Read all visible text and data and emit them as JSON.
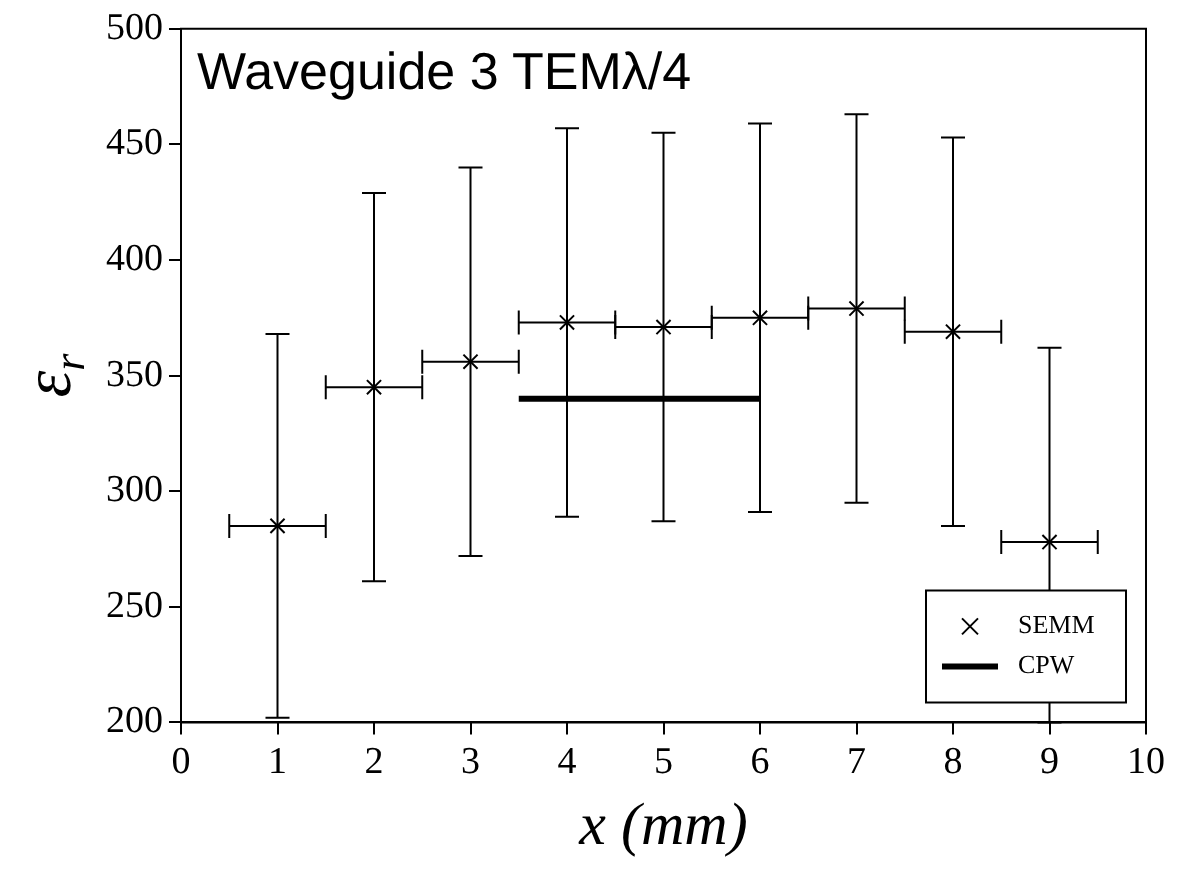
{
  "chart_data": {
    "type": "scatter",
    "title": "Waveguide 3 TEMλ/4",
    "xlabel": "x (mm)",
    "ylabel": "ε$_{r}$",
    "xlim": [
      0,
      10
    ],
    "xticks": [
      0,
      1,
      2,
      3,
      4,
      5,
      6,
      7,
      8,
      9,
      10
    ],
    "ylim": [
      200,
      500
    ],
    "yticks": [
      200,
      250,
      300,
      350,
      400,
      450,
      500
    ],
    "grid": false,
    "legend": "bottom right",
    "marker": "cross",
    "series": [
      {
        "name": "SEMM",
        "type": "scatter",
        "color": "#000000",
        "x": [
          1,
          2,
          3,
          4,
          5,
          6,
          7,
          8,
          9
        ],
        "values": [
          285,
          345,
          356,
          373,
          371,
          375,
          379,
          369,
          278
        ],
        "errors": [
          83,
          84,
          84,
          84,
          84,
          84,
          84,
          84,
          [
            200,
            362
          ]
        ],
        "xerrors": [
          0.5,
          0.5,
          0.5,
          0.5,
          0.5,
          0.5,
          0.5,
          0.5,
          0.5
        ]
      },
      {
        "name": "CPW",
        "type": "line",
        "color": "#000000",
        "x": [
          3.5,
          6
        ],
        "values": [
          340,
          340
        ],
        "line_style": "solid",
        "marker": "none"
      }
    ]
  }
}
